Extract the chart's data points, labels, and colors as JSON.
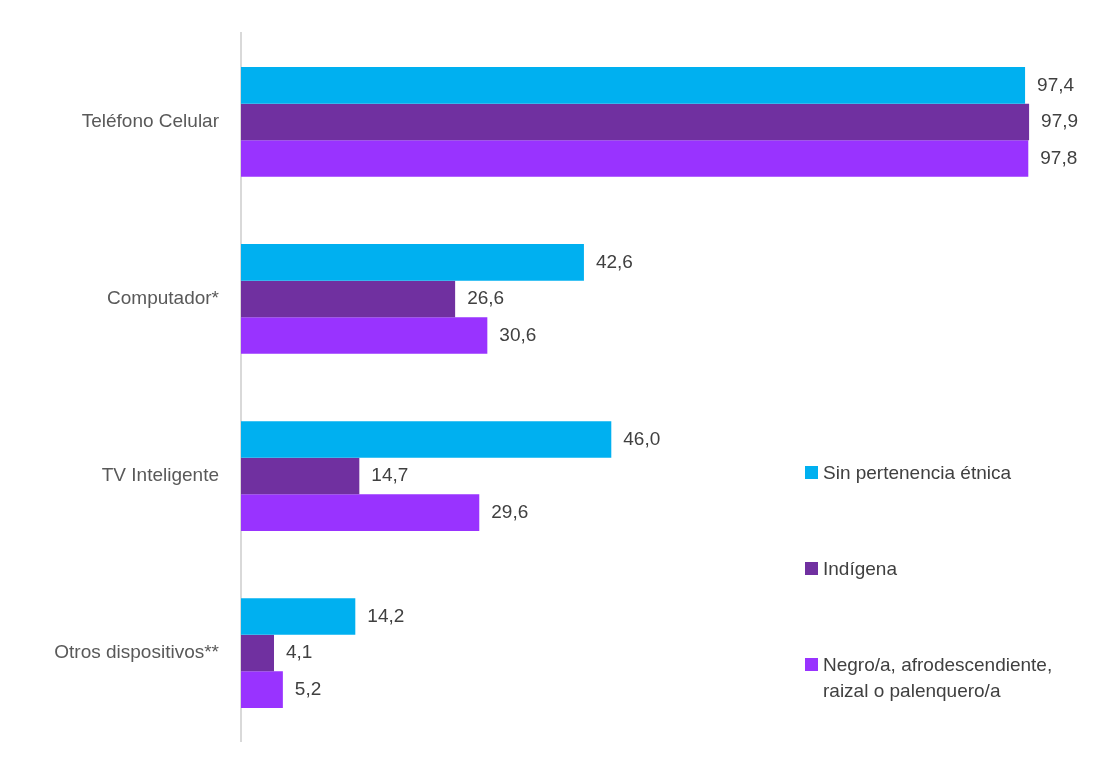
{
  "chart_data": {
    "type": "bar",
    "orientation": "horizontal",
    "categories": [
      "Teléfono Celular",
      "Computador*",
      "TV Inteligente",
      "Otros dispositivos**"
    ],
    "series": [
      {
        "name": "Sin pertenencia étnica",
        "color": "#00b0f0",
        "values": [
          97.4,
          42.6,
          46.0,
          14.2
        ],
        "value_labels": [
          "97,4",
          "42,6",
          "46,0",
          "14,2"
        ]
      },
      {
        "name": "Indígena",
        "color": "#7030a0",
        "values": [
          97.9,
          26.6,
          14.7,
          4.1
        ],
        "value_labels": [
          "97,9",
          "26,6",
          "14,7",
          "4,1"
        ]
      },
      {
        "name": "Negro/a, afrodescendiente, raizal o palenquero/a",
        "color": "#9933ff",
        "values": [
          97.8,
          30.6,
          29.6,
          5.2
        ],
        "value_labels": [
          "97,8",
          "30,6",
          "29,6",
          "5,2"
        ]
      }
    ],
    "tick_labels": "y",
    "legend": "right"
  }
}
